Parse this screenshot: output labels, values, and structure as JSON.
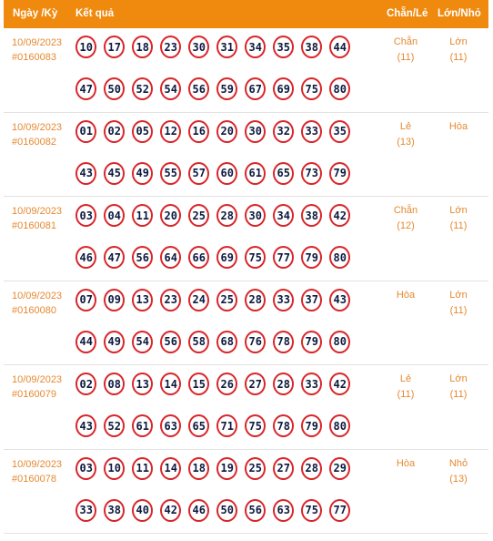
{
  "header": {
    "date_label": "Ngày /Kỳ",
    "result_label": "Kết quả",
    "chanle_label": "Chẵn/Lẻ",
    "lonnho_label": "Lớn/Nhỏ"
  },
  "rows": [
    {
      "date": "10/09/2023",
      "ky": "#0160083",
      "numbers_top": [
        "10",
        "17",
        "18",
        "23",
        "30",
        "31",
        "34",
        "35",
        "38",
        "44"
      ],
      "numbers_bottom": [
        "47",
        "50",
        "52",
        "54",
        "56",
        "59",
        "67",
        "69",
        "75",
        "80"
      ],
      "chanle": "Chẵn",
      "chanle_count": "(11)",
      "lonnho": "Lớn",
      "lonnho_count": "(11)"
    },
    {
      "date": "10/09/2023",
      "ky": "#0160082",
      "numbers_top": [
        "01",
        "02",
        "05",
        "12",
        "16",
        "20",
        "30",
        "32",
        "33",
        "35"
      ],
      "numbers_bottom": [
        "43",
        "45",
        "49",
        "55",
        "57",
        "60",
        "61",
        "65",
        "73",
        "79"
      ],
      "chanle": "Lẻ",
      "chanle_count": "(13)",
      "lonnho": "Hòa",
      "lonnho_count": ""
    },
    {
      "date": "10/09/2023",
      "ky": "#0160081",
      "numbers_top": [
        "03",
        "04",
        "11",
        "20",
        "25",
        "28",
        "30",
        "34",
        "38",
        "42"
      ],
      "numbers_bottom": [
        "46",
        "47",
        "56",
        "64",
        "66",
        "69",
        "75",
        "77",
        "79",
        "80"
      ],
      "chanle": "Chẵn",
      "chanle_count": "(12)",
      "lonnho": "Lớn",
      "lonnho_count": "(11)"
    },
    {
      "date": "10/09/2023",
      "ky": "#0160080",
      "numbers_top": [
        "07",
        "09",
        "13",
        "23",
        "24",
        "25",
        "28",
        "33",
        "37",
        "43"
      ],
      "numbers_bottom": [
        "44",
        "49",
        "54",
        "56",
        "58",
        "68",
        "76",
        "78",
        "79",
        "80"
      ],
      "chanle": "Hòa",
      "chanle_count": "",
      "lonnho": "Lớn",
      "lonnho_count": "(11)"
    },
    {
      "date": "10/09/2023",
      "ky": "#0160079",
      "numbers_top": [
        "02",
        "08",
        "13",
        "14",
        "15",
        "26",
        "27",
        "28",
        "33",
        "42"
      ],
      "numbers_bottom": [
        "43",
        "52",
        "61",
        "63",
        "65",
        "71",
        "75",
        "78",
        "79",
        "80"
      ],
      "chanle": "Lẻ",
      "chanle_count": "(11)",
      "lonnho": "Lớn",
      "lonnho_count": "(11)"
    },
    {
      "date": "10/09/2023",
      "ky": "#0160078",
      "numbers_top": [
        "03",
        "10",
        "11",
        "14",
        "18",
        "19",
        "25",
        "27",
        "28",
        "29"
      ],
      "numbers_bottom": [
        "33",
        "38",
        "40",
        "42",
        "46",
        "50",
        "56",
        "63",
        "75",
        "77"
      ],
      "chanle": "Hòa",
      "chanle_count": "",
      "lonnho": "Nhỏ",
      "lonnho_count": "(13)"
    }
  ]
}
